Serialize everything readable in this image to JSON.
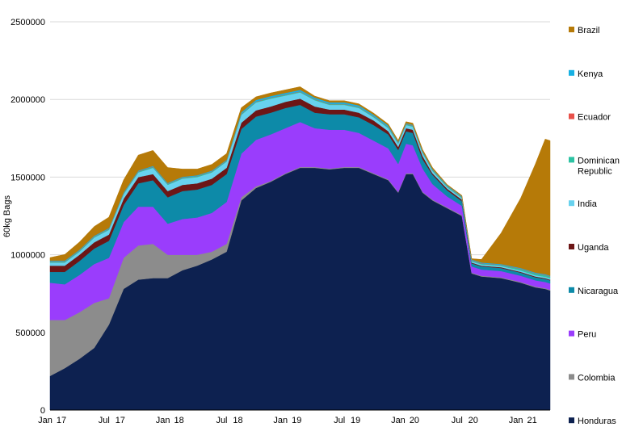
{
  "chart_data": {
    "type": "area",
    "stacked": true,
    "title": "",
    "xlabel": "",
    "ylabel": "60kg Bags",
    "ylim": [
      0,
      2500000
    ],
    "yticks": [
      0,
      500000,
      1000000,
      1500000,
      2000000,
      2500000
    ],
    "ytick_labels": [
      "0",
      "500000",
      "1000000",
      "1500000",
      "2000000",
      "2500000"
    ],
    "xlim": [
      0,
      51
    ],
    "xticks": [
      {
        "t": 0,
        "top": "Jan",
        "bottom": "17"
      },
      {
        "t": 6,
        "top": "Jul",
        "bottom": "17"
      },
      {
        "t": 12,
        "top": "Jan",
        "bottom": "18"
      },
      {
        "t": 18,
        "top": "Jul",
        "bottom": "18"
      },
      {
        "t": 24,
        "top": "Jan",
        "bottom": "19"
      },
      {
        "t": 30,
        "top": "Jul",
        "bottom": "19"
      },
      {
        "t": 36,
        "top": "Jan",
        "bottom": "20"
      },
      {
        "t": 42,
        "top": "Jul",
        "bottom": "20"
      },
      {
        "t": 48,
        "top": "Jan",
        "bottom": "21"
      }
    ],
    "grid": "horizontal",
    "legend_position": "right",
    "x": [
      0,
      1.5,
      3,
      4.5,
      6,
      7.5,
      9,
      10.5,
      12,
      13.5,
      15,
      16.5,
      18,
      19.5,
      21,
      22.5,
      24,
      25.5,
      27,
      28.5,
      30,
      31.5,
      33,
      34.5,
      35.5,
      36.3,
      37,
      38,
      39,
      40.5,
      42,
      43,
      44,
      46,
      48,
      49.5,
      50.5,
      51
    ],
    "series": [
      {
        "name": "Honduras",
        "color": "#0d2150",
        "values": [
          220000,
          270000,
          330000,
          400000,
          550000,
          780000,
          840000,
          850000,
          850000,
          900000,
          930000,
          970000,
          1020000,
          1350000,
          1430000,
          1470000,
          1520000,
          1560000,
          1560000,
          1550000,
          1560000,
          1560000,
          1520000,
          1480000,
          1400000,
          1520000,
          1520000,
          1400000,
          1350000,
          1300000,
          1250000,
          880000,
          860000,
          850000,
          820000,
          790000,
          780000,
          770000
        ]
      },
      {
        "name": "Colombia",
        "color": "#8c8c8c",
        "values": [
          360000,
          310000,
          300000,
          290000,
          170000,
          200000,
          220000,
          220000,
          150000,
          100000,
          70000,
          50000,
          50000,
          20000,
          10000,
          5000,
          5000,
          5000,
          5000,
          5000,
          5000,
          5000,
          5000,
          5000,
          5000,
          5000,
          5000,
          5000,
          5000,
          5000,
          5000,
          5000,
          5000,
          5000,
          5000,
          5000,
          5000,
          5000
        ]
      },
      {
        "name": "Peru",
        "color": "#9a3dfc",
        "values": [
          240000,
          230000,
          240000,
          250000,
          260000,
          230000,
          250000,
          240000,
          200000,
          230000,
          240000,
          250000,
          270000,
          280000,
          300000,
          300000,
          290000,
          290000,
          250000,
          250000,
          240000,
          220000,
          210000,
          200000,
          180000,
          190000,
          180000,
          150000,
          100000,
          70000,
          60000,
          40000,
          40000,
          40000,
          40000,
          40000,
          40000,
          40000
        ]
      },
      {
        "name": "Nicaragua",
        "color": "#0d8aa8",
        "values": [
          70000,
          80000,
          90000,
          100000,
          110000,
          110000,
          150000,
          170000,
          170000,
          180000,
          180000,
          180000,
          180000,
          160000,
          150000,
          140000,
          130000,
          110000,
          100000,
          100000,
          100000,
          100000,
          100000,
          90000,
          90000,
          80000,
          80000,
          60000,
          60000,
          40000,
          30000,
          20000,
          20000,
          20000,
          20000,
          20000,
          20000,
          20000
        ]
      },
      {
        "name": "Uganda",
        "color": "#6d1616",
        "values": [
          40000,
          40000,
          40000,
          40000,
          40000,
          40000,
          40000,
          40000,
          40000,
          40000,
          40000,
          40000,
          40000,
          40000,
          40000,
          40000,
          40000,
          40000,
          40000,
          30000,
          30000,
          30000,
          30000,
          20000,
          20000,
          20000,
          20000,
          20000,
          10000,
          10000,
          10000,
          5000,
          5000,
          5000,
          5000,
          5000,
          5000,
          5000
        ]
      },
      {
        "name": "India",
        "color": "#68d2ee",
        "values": [
          20000,
          20000,
          20000,
          30000,
          30000,
          30000,
          30000,
          40000,
          40000,
          40000,
          40000,
          40000,
          40000,
          50000,
          50000,
          50000,
          40000,
          40000,
          40000,
          30000,
          30000,
          30000,
          20000,
          20000,
          20000,
          20000,
          20000,
          20000,
          15000,
          10000,
          10000,
          8000,
          8000,
          8000,
          8000,
          8000,
          8000,
          8000
        ]
      },
      {
        "name": "Dominican Republic",
        "color": "#2cc3a3",
        "values": [
          5000,
          5000,
          5000,
          5000,
          5000,
          5000,
          5000,
          5000,
          5000,
          5000,
          5000,
          5000,
          5000,
          5000,
          5000,
          5000,
          5000,
          5000,
          5000,
          5000,
          5000,
          5000,
          5000,
          5000,
          5000,
          5000,
          5000,
          5000,
          5000,
          5000,
          5000,
          5000,
          5000,
          5000,
          10000,
          10000,
          10000,
          10000
        ]
      },
      {
        "name": "Ecuador",
        "color": "#e8514a",
        "values": [
          2000,
          2000,
          2000,
          2000,
          2000,
          2000,
          2000,
          2000,
          2000,
          2000,
          2000,
          2000,
          2000,
          2000,
          2000,
          2000,
          2000,
          2000,
          2000,
          2000,
          2000,
          2000,
          2000,
          2000,
          2000,
          2000,
          2000,
          2000,
          2000,
          2000,
          2000,
          2000,
          2000,
          2000,
          2000,
          2000,
          2000,
          2000
        ]
      },
      {
        "name": "Kenya",
        "color": "#17b1e3",
        "values": [
          5000,
          5000,
          5000,
          5000,
          5000,
          5000,
          5000,
          5000,
          5000,
          5000,
          5000,
          5000,
          5000,
          10000,
          10000,
          10000,
          10000,
          10000,
          10000,
          10000,
          10000,
          10000,
          10000,
          10000,
          5000,
          5000,
          5000,
          5000,
          5000,
          5000,
          5000,
          5000,
          5000,
          5000,
          5000,
          5000,
          5000,
          5000
        ]
      },
      {
        "name": "Brazil",
        "color": "#b67a08",
        "values": [
          20000,
          40000,
          50000,
          60000,
          70000,
          80000,
          100000,
          100000,
          100000,
          50000,
          40000,
          40000,
          40000,
          30000,
          20000,
          20000,
          20000,
          20000,
          10000,
          10000,
          10000,
          10000,
          10000,
          10000,
          10000,
          10000,
          10000,
          10000,
          10000,
          5000,
          5000,
          5000,
          20000,
          200000,
          450000,
          700000,
          870000,
          870000
        ]
      }
    ],
    "legend_order": [
      "Brazil",
      "Kenya",
      "Ecuador",
      "Dominican Republic",
      "India",
      "Uganda",
      "Nicaragua",
      "Peru",
      "Colombia",
      "Honduras"
    ]
  }
}
